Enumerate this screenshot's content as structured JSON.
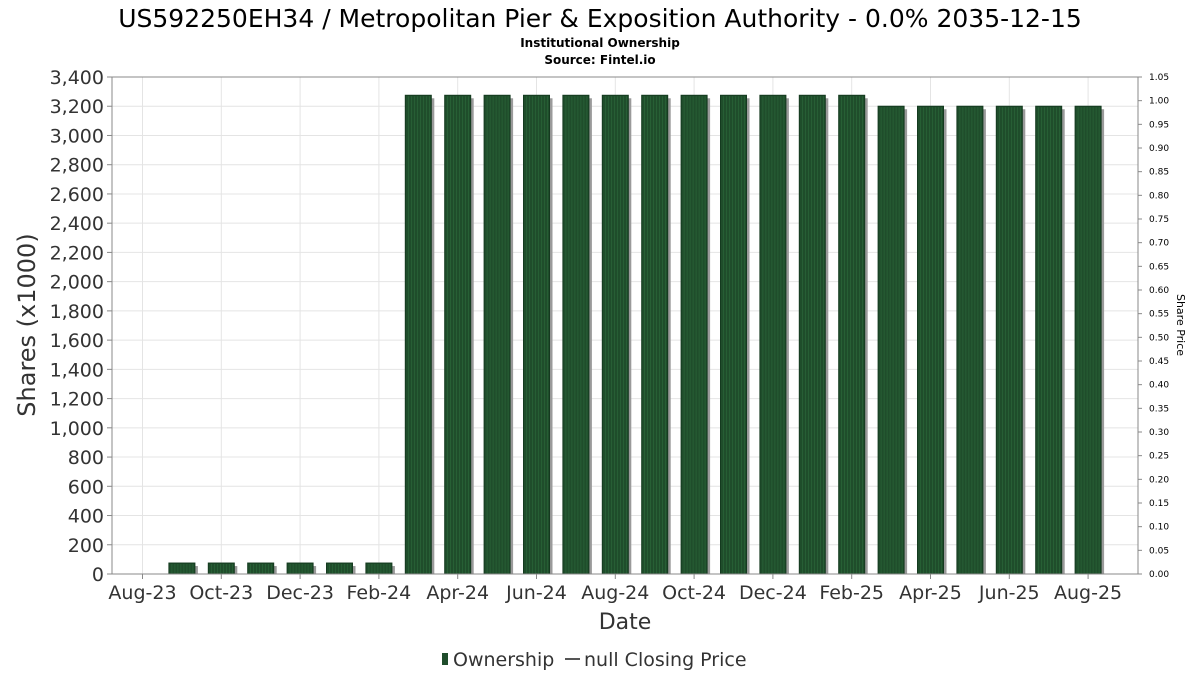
{
  "chart_data": {
    "type": "bar",
    "title": "US592250EH34 / Metropolitan Pier & Exposition Authority - 0.0% 2035-12-15",
    "subtitle": "Institutional Ownership",
    "source": "Source: Fintel.io",
    "xlabel": "Date",
    "ylabel": "Shares (x1000)",
    "y2label": "Share Price",
    "ylim": [
      0,
      3400
    ],
    "y2lim": [
      0,
      1.05
    ],
    "yticks": [
      "0",
      "200",
      "400",
      "600",
      "800",
      "1,000",
      "1,200",
      "1,400",
      "1,600",
      "1,800",
      "2,000",
      "2,200",
      "2,400",
      "2,600",
      "2,800",
      "3,000",
      "3,200",
      "3,400"
    ],
    "y2ticks": [
      "0.00",
      "0.05",
      "0.10",
      "0.15",
      "0.20",
      "0.25",
      "0.30",
      "0.35",
      "0.40",
      "0.45",
      "0.50",
      "0.55",
      "0.60",
      "0.65",
      "0.70",
      "0.75",
      "0.80",
      "0.85",
      "0.90",
      "0.95",
      "1.00",
      "1.05"
    ],
    "xticks": [
      "Aug-23",
      "Oct-23",
      "Dec-23",
      "Feb-24",
      "Apr-24",
      "Jun-24",
      "Aug-24",
      "Oct-24",
      "Dec-24",
      "Feb-25",
      "Apr-25",
      "Jun-25",
      "Aug-25"
    ],
    "categories": [
      "Sep-23",
      "Oct-23",
      "Nov-23",
      "Dec-23",
      "Jan-24",
      "Feb-24",
      "Mar-24",
      "Apr-24",
      "May-24",
      "Jun-24",
      "Jul-24",
      "Aug-24",
      "Sep-24",
      "Oct-24",
      "Nov-24",
      "Dec-24",
      "Jan-25",
      "Feb-25",
      "Mar-25",
      "Apr-25",
      "May-25",
      "Jun-25",
      "Jul-25",
      "Aug-25"
    ],
    "series": [
      {
        "name": "Ownership",
        "color": "#1f4d2b",
        "values": [
          75,
          75,
          75,
          75,
          75,
          75,
          3275,
          3275,
          3275,
          3275,
          3275,
          3275,
          3275,
          3275,
          3275,
          3275,
          3275,
          3275,
          3200,
          3200,
          3200,
          3200,
          3200,
          3200
        ]
      }
    ],
    "legend": [
      {
        "label": "Ownership",
        "symbol": "bar",
        "color": "#1f4d2b"
      },
      {
        "label": "null Closing Price",
        "symbol": "line",
        "color": "#555555"
      }
    ],
    "legend_position": "bottom",
    "grid": true
  }
}
